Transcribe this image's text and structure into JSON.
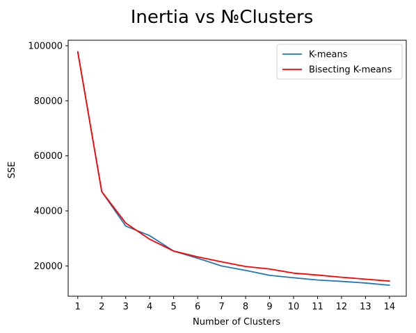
{
  "chart_data": {
    "type": "line",
    "title": "Inertia vs №Clusters",
    "xlabel": "Number of Clusters",
    "ylabel": "SSE",
    "x": [
      1,
      2,
      3,
      4,
      5,
      6,
      7,
      8,
      9,
      10,
      11,
      12,
      13,
      14
    ],
    "xlim": [
      0.6,
      14.7
    ],
    "ylim": [
      9000,
      102000
    ],
    "yticks": [
      20000,
      40000,
      60000,
      80000,
      100000
    ],
    "grid": false,
    "legend_position": "top-right",
    "series": [
      {
        "name": "K-means",
        "color": "#1f77b4",
        "values": [
          97800,
          47000,
          34500,
          31000,
          25400,
          22800,
          20000,
          18400,
          16600,
          15700,
          14900,
          14400,
          13800,
          13000
        ]
      },
      {
        "name": "Bisecting K-means",
        "color": "#ff0000",
        "values": [
          97800,
          47000,
          35600,
          29700,
          25400,
          23300,
          21500,
          19800,
          18900,
          17400,
          16700,
          15900,
          15200,
          14500
        ]
      }
    ]
  }
}
